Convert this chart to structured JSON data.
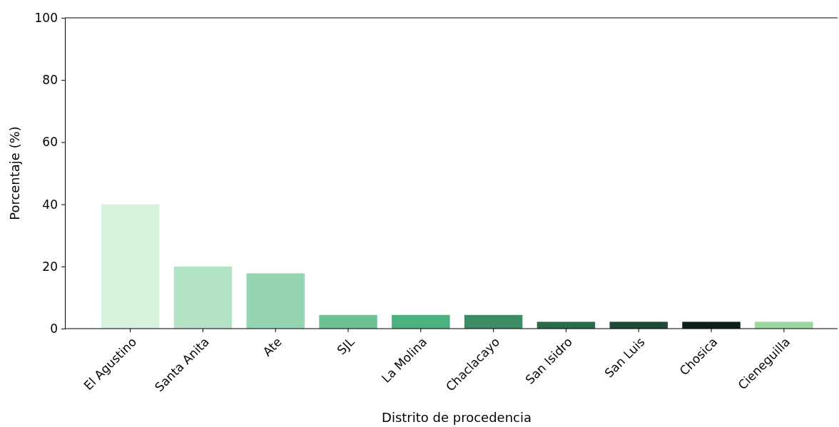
{
  "chart_data": {
    "type": "bar",
    "xlabel": "Distrito de procedencia",
    "ylabel": "Porcentaje (%)",
    "categories": [
      "El Agustino",
      "Santa Anita",
      "Ate",
      "SJL",
      "La Molina",
      "Chaclacayo",
      "San Isidro",
      "San Luis",
      "Chosica",
      "Cieneguilla"
    ],
    "values": [
      40,
      20,
      17.8,
      4.4,
      4.4,
      4.4,
      2.2,
      2.2,
      2.2,
      2.2
    ],
    "colors": [
      "#d6f1dc",
      "#b4e2c5",
      "#94d4b1",
      "#6cc092",
      "#4cb07f",
      "#3d8c65",
      "#2c6a4c",
      "#1e4a36",
      "#0d1f17",
      "#9dd69e"
    ],
    "ylim": [
      0,
      100
    ],
    "yticks": [
      0,
      20,
      40,
      60,
      80,
      100
    ],
    "grid": false
  }
}
